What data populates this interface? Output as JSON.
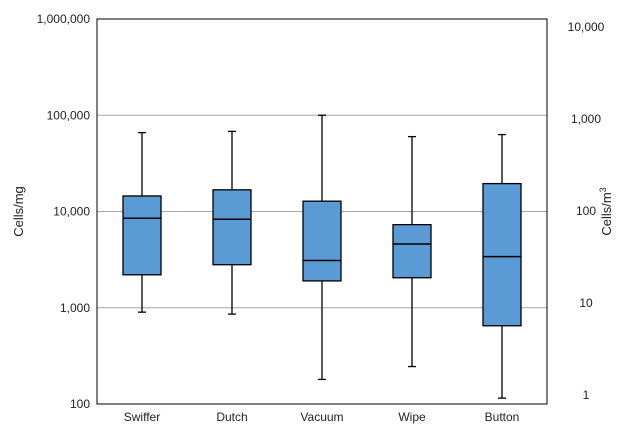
{
  "chart_data": {
    "type": "boxplot",
    "categories": [
      "Swiffer",
      "Dutch",
      "Vacuum",
      "Wipe",
      "Button"
    ],
    "boxes": [
      {
        "category": "Swiffer",
        "min": 900,
        "q1": 2200,
        "median": 8500,
        "q3": 14500,
        "max": 66000
      },
      {
        "category": "Dutch",
        "min": 860,
        "q1": 2800,
        "median": 8300,
        "q3": 16800,
        "max": 68000
      },
      {
        "category": "Vacuum",
        "min": 180,
        "q1": 1900,
        "median": 3100,
        "q3": 12800,
        "max": 100000
      },
      {
        "category": "Wipe",
        "min": 245,
        "q1": 2050,
        "median": 4600,
        "q3": 7300,
        "max": 60000
      },
      {
        "category": "Button",
        "min": 115,
        "q1": 650,
        "median": 3400,
        "q3": 19500,
        "max": 63000
      }
    ],
    "y_scale": "log",
    "ylim": [
      100,
      1000000
    ],
    "y_ticks": [
      100,
      1000,
      10000,
      100000,
      1000000
    ],
    "y_tick_labels": [
      "100",
      "1,000",
      "10,000",
      "100,000",
      "1,000,000"
    ],
    "y2_ticks": [
      1,
      10,
      100,
      1000,
      10000
    ],
    "y2_tick_labels": [
      "1",
      "10",
      "100",
      "1,000",
      "10,000"
    ],
    "ylabel": "Cells/mg",
    "y2label_base": "Cells/m",
    "y2label_sup": "3",
    "grid": "horizontal",
    "box_color": "#5b9bd5",
    "line_color": "#000000",
    "grid_color": "#a6a6a6"
  }
}
